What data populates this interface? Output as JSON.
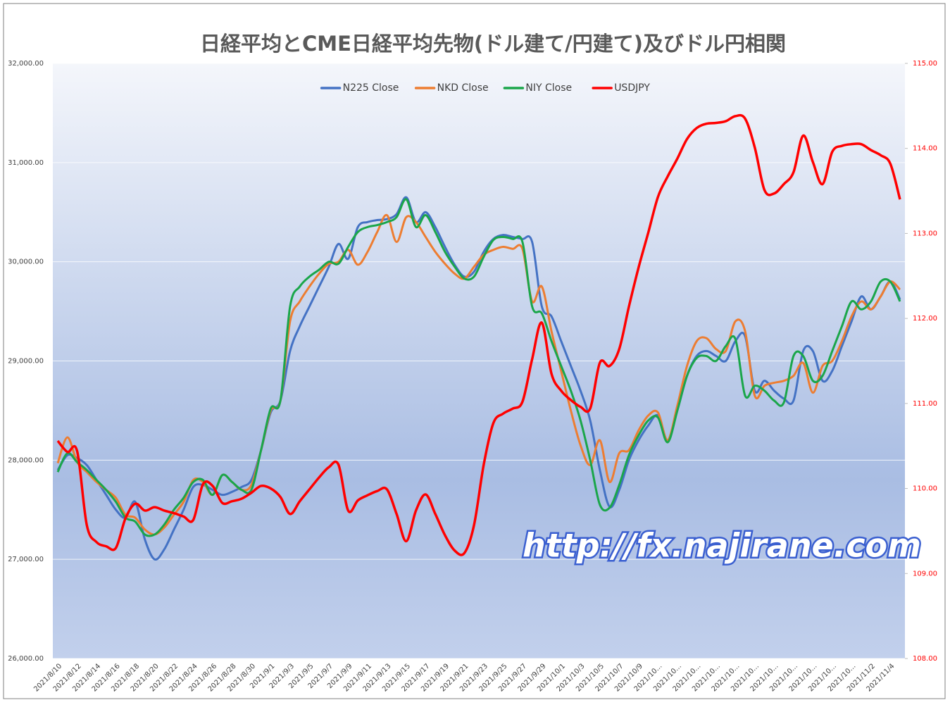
{
  "chart_data": {
    "type": "line",
    "title": "日経平均とCME日経平均先物(ドル建て/円建て)及びドル円相関",
    "watermark": "http://fx.najirane.com",
    "categories": [
      "2021/8/10",
      null,
      "2021/8/12",
      null,
      "2021/8/14",
      null,
      "2021/8/16",
      null,
      "2021/8/18",
      null,
      "2021/8/20",
      null,
      "2021/8/22",
      null,
      "2021/8/24",
      null,
      "2021/8/26",
      null,
      "2021/8/28",
      null,
      "2021/8/30",
      null,
      "2021/9/1",
      null,
      "2021/9/3",
      null,
      "2021/9/5",
      null,
      "2021/9/7",
      null,
      "2021/9/9",
      null,
      "2021/9/11",
      null,
      "2021/9/13",
      null,
      "2021/9/15",
      null,
      "2021/9/17",
      null,
      "2021/9/19",
      null,
      "2021/9/21",
      null,
      "2021/9/23",
      null,
      "2021/9/25",
      null,
      "2021/9/27",
      null,
      "2021/9/29",
      null,
      "2021/10/1",
      null,
      "2021/10/3",
      null,
      "2021/10/5",
      null,
      "2021/10/7",
      null,
      "2021/10/9",
      null,
      "2021/10...",
      null,
      "2021/10...",
      null,
      "2021/10...",
      null,
      "2021/10...",
      null,
      "2021/10...",
      null,
      "2021/10...",
      null,
      "2021/10...",
      null,
      "2021/10...",
      null,
      "2021/10...",
      null,
      "2021/10...",
      null,
      "2021/10...",
      null,
      "2021/11/2",
      null,
      "2021/11/4",
      null
    ],
    "series": [
      {
        "name": "N225 Close",
        "color": "#4472c4",
        "values": [
          27900,
          28050,
          28020,
          27950,
          27800,
          27650,
          27500,
          27420,
          27580,
          27200,
          27000,
          27100,
          27300,
          27500,
          27730,
          27750,
          27700,
          27650,
          27680,
          27730,
          27800,
          28100,
          28480,
          28600,
          29100,
          29350,
          29550,
          29750,
          29950,
          30180,
          30030,
          30350,
          30400,
          30420,
          30430,
          30480,
          30650,
          30400,
          30500,
          30350,
          30150,
          29970,
          29850,
          29900,
          30100,
          30230,
          30270,
          30250,
          30230,
          30200,
          29550,
          29450,
          29200,
          28950,
          28700,
          28400,
          27900,
          27530,
          27700,
          28000,
          28200,
          28350,
          28450,
          28200,
          28500,
          28850,
          29050,
          29100,
          29050,
          29000,
          29200,
          29250,
          28700,
          28800,
          28700,
          28620,
          28600,
          29100,
          29100,
          28800,
          28900,
          29150,
          29400,
          29650,
          29520,
          29650,
          29800,
          29620
        ]
      },
      {
        "name": "NKD Close",
        "color": "#ed7d31",
        "values": [
          27970,
          28230,
          27980,
          27880,
          27780,
          27700,
          27620,
          27450,
          27420,
          27300,
          27250,
          27320,
          27450,
          27580,
          27800,
          27780,
          27650,
          27850,
          27780,
          27700,
          27750,
          28100,
          28500,
          28600,
          29400,
          29600,
          29750,
          29880,
          29980,
          30000,
          30120,
          29970,
          30100,
          30300,
          30470,
          30200,
          30450,
          30400,
          30250,
          30100,
          29980,
          29880,
          29830,
          29950,
          30070,
          30120,
          30150,
          30130,
          30130,
          29600,
          29750,
          29300,
          28900,
          28500,
          28150,
          27950,
          28200,
          27780,
          28070,
          28100,
          28300,
          28450,
          28480,
          28200,
          28550,
          28950,
          29200,
          29230,
          29120,
          29100,
          29400,
          29300,
          28650,
          28750,
          28780,
          28800,
          28850,
          28980,
          28680,
          28950,
          29000,
          29200,
          29450,
          29600,
          29520,
          29650,
          29800,
          29720
        ]
      },
      {
        "name": "NIY Close",
        "color": "#1aa64a",
        "values": [
          27880,
          28070,
          27980,
          27900,
          27800,
          27700,
          27580,
          27420,
          27380,
          27250,
          27250,
          27350,
          27500,
          27620,
          27780,
          27800,
          27650,
          27850,
          27780,
          27700,
          27700,
          28100,
          28520,
          28600,
          29550,
          29750,
          29850,
          29920,
          30000,
          29980,
          30150,
          30300,
          30350,
          30370,
          30400,
          30450,
          30630,
          30350,
          30470,
          30300,
          30100,
          29950,
          29830,
          29850,
          30050,
          30220,
          30250,
          30230,
          30200,
          29550,
          29480,
          29200,
          28950,
          28700,
          28400,
          28000,
          27550,
          27520,
          27750,
          28050,
          28250,
          28400,
          28430,
          28180,
          28500,
          28850,
          29030,
          29050,
          29000,
          29150,
          29220,
          28650,
          28750,
          28700,
          28600,
          28580,
          29050,
          29050,
          28800,
          28850,
          29100,
          29350,
          29600,
          29520,
          29600,
          29800,
          29800,
          29600
        ]
      },
      {
        "name": "USDJPY",
        "color": "#ff0000",
        "axis": "y2",
        "values": [
          110.56,
          110.43,
          110.44,
          109.57,
          109.37,
          109.32,
          109.3,
          109.65,
          109.82,
          109.74,
          109.78,
          109.74,
          109.71,
          109.67,
          109.63,
          110.05,
          110.03,
          109.83,
          109.85,
          109.88,
          109.95,
          110.03,
          110.0,
          109.9,
          109.7,
          109.85,
          109.99,
          110.13,
          110.25,
          110.28,
          109.74,
          109.86,
          109.92,
          109.97,
          109.99,
          109.7,
          109.38,
          109.74,
          109.93,
          109.7,
          109.45,
          109.27,
          109.24,
          109.57,
          110.28,
          110.77,
          110.88,
          110.94,
          111.02,
          111.52,
          111.95,
          111.35,
          111.15,
          111.04,
          110.96,
          110.94,
          111.48,
          111.44,
          111.64,
          112.14,
          112.6,
          113.01,
          113.43,
          113.67,
          113.88,
          114.11,
          114.24,
          114.29,
          114.3,
          114.32,
          114.38,
          114.35,
          114.01,
          113.51,
          113.47,
          113.58,
          113.72,
          114.15,
          113.84,
          113.58,
          113.96,
          114.03,
          114.05,
          114.05,
          113.98,
          113.92,
          113.82,
          113.4
        ]
      }
    ],
    "ylim": [
      26000,
      32000
    ],
    "yticks": [
      {
        "value": 26000,
        "label": "26,000.00"
      },
      {
        "value": 27000,
        "label": "27,000.00"
      },
      {
        "value": 28000,
        "label": "28,000.00"
      },
      {
        "value": 29000,
        "label": "29,000.00"
      },
      {
        "value": 30000,
        "label": "30,000.00"
      },
      {
        "value": 31000,
        "label": "31,000.00"
      },
      {
        "value": 32000,
        "label": "32,000.00"
      }
    ],
    "y2lim": [
      108,
      115
    ],
    "y2ticks": [
      {
        "value": 108,
        "label": "108.00"
      },
      {
        "value": 109,
        "label": "109.00"
      },
      {
        "value": 110,
        "label": "110.00"
      },
      {
        "value": 111,
        "label": "111.00"
      },
      {
        "value": 112,
        "label": "112.00"
      },
      {
        "value": 113,
        "label": "113.00"
      },
      {
        "value": 114,
        "label": "114.00"
      },
      {
        "value": 115,
        "label": "115.00"
      }
    ],
    "grid": true,
    "legend": "top"
  }
}
